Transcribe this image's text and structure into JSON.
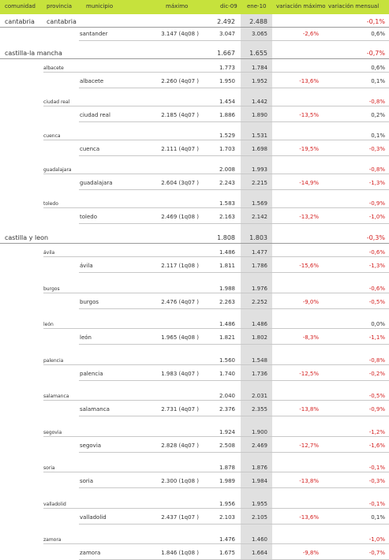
{
  "headers": {
    "comunidad": "comunidad",
    "provincia": "provincia",
    "municipio": "municipio",
    "maximo": "máximo",
    "dic09": "dic-09",
    "ene10": "ene-10",
    "var_max": "variación máximo",
    "var_mensual": "variación mensual"
  },
  "regions": [
    {
      "name": "cantabria",
      "provincia_label": "cantabria",
      "dic09": "2.492",
      "ene10": "2.488",
      "var_mensual": "-0,1%",
      "provinces": [],
      "municipios": [
        {
          "name": "santander",
          "maximo": "3.147 (4q08 )",
          "dic09": "3.047",
          "ene10": "3.065",
          "var_max": "-2,6%",
          "var_mensual": "0,6%"
        }
      ]
    },
    {
      "name": "castilla-la mancha",
      "dic09": "1.667",
      "ene10": "1.655",
      "var_mensual": "-0,7%",
      "provinces": [
        {
          "name": "albacete",
          "dic09": "1.773",
          "ene10": "1.784",
          "var_mensual": "0,6%",
          "municipio": {
            "name": "albacete",
            "maximo": "2.260 (4q07 )",
            "dic09": "1.950",
            "ene10": "1.952",
            "var_max": "-13,6%",
            "var_mensual": "0,1%"
          }
        },
        {
          "name": "ciudad real",
          "dic09": "1.454",
          "ene10": "1.442",
          "var_mensual": "-0,8%",
          "municipio": {
            "name": "ciudad real",
            "maximo": "2.185 (4q07 )",
            "dic09": "1.886",
            "ene10": "1.890",
            "var_max": "-13,5%",
            "var_mensual": "0,2%"
          }
        },
        {
          "name": "cuenca",
          "dic09": "1.529",
          "ene10": "1.531",
          "var_mensual": "0,1%",
          "municipio": {
            "name": "cuenca",
            "maximo": "2.111 (4q07 )",
            "dic09": "1.703",
            "ene10": "1.698",
            "var_max": "-19,5%",
            "var_mensual": "-0,3%"
          }
        },
        {
          "name": "guadalajara",
          "dic09": "2.008",
          "ene10": "1.993",
          "var_mensual": "-0,8%",
          "municipio": {
            "name": "guadalajara",
            "maximo": "2.604 (3q07 )",
            "dic09": "2.243",
            "ene10": "2.215",
            "var_max": "-14,9%",
            "var_mensual": "-1,3%"
          }
        },
        {
          "name": "toledo",
          "dic09": "1.583",
          "ene10": "1.569",
          "var_mensual": "-0,9%",
          "municipio": {
            "name": "toledo",
            "maximo": "2.469 (1q08 )",
            "dic09": "2.163",
            "ene10": "2.142",
            "var_max": "-13,2%",
            "var_mensual": "-1,0%"
          }
        }
      ]
    },
    {
      "name": "castilla y leon",
      "dic09": "1.808",
      "ene10": "1.803",
      "var_mensual": "-0,3%",
      "provinces": [
        {
          "name": "ávila",
          "dic09": "1.486",
          "ene10": "1.477",
          "var_mensual": "-0,6%",
          "municipio": {
            "name": "ávila",
            "maximo": "2.117 (1q08 )",
            "dic09": "1.811",
            "ene10": "1.786",
            "var_max": "-15,6%",
            "var_mensual": "-1,3%"
          }
        },
        {
          "name": "burgos",
          "dic09": "1.988",
          "ene10": "1.976",
          "var_mensual": "-0,6%",
          "municipio": {
            "name": "burgos",
            "maximo": "2.476 (4q07 )",
            "dic09": "2.263",
            "ene10": "2.252",
            "var_max": "-9,0%",
            "var_mensual": "-0,5%"
          }
        },
        {
          "name": "león",
          "dic09": "1.486",
          "ene10": "1.486",
          "var_mensual": "0,0%",
          "municipio": {
            "name": "león",
            "maximo": "1.965 (4q08 )",
            "dic09": "1.821",
            "ene10": "1.802",
            "var_max": "-8,3%",
            "var_mensual": "-1,1%"
          }
        },
        {
          "name": "palencia",
          "dic09": "1.560",
          "ene10": "1.548",
          "var_mensual": "-0,8%",
          "municipio": {
            "name": "palencia",
            "maximo": "1.983 (4q07 )",
            "dic09": "1.740",
            "ene10": "1.736",
            "var_max": "-12,5%",
            "var_mensual": "-0,2%"
          }
        },
        {
          "name": "salamanca",
          "dic09": "2.040",
          "ene10": "2.031",
          "var_mensual": "-0,5%",
          "municipio": {
            "name": "salamanca",
            "maximo": "2.731 (4q07 )",
            "dic09": "2.376",
            "ene10": "2.355",
            "var_max": "-13,8%",
            "var_mensual": "-0,9%"
          }
        },
        {
          "name": "segovia",
          "dic09": "1.924",
          "ene10": "1.900",
          "var_mensual": "-1,2%",
          "municipio": {
            "name": "segovia",
            "maximo": "2.828 (4q07 )",
            "dic09": "2.508",
            "ene10": "2.469",
            "var_max": "-12,7%",
            "var_mensual": "-1,6%"
          }
        },
        {
          "name": "soria",
          "dic09": "1.878",
          "ene10": "1.876",
          "var_mensual": "-0,1%",
          "municipio": {
            "name": "soria",
            "maximo": "2.300 (1q08 )",
            "dic09": "1.989",
            "ene10": "1.984",
            "var_max": "-13,8%",
            "var_mensual": "-0,3%"
          }
        },
        {
          "name": "valladolid",
          "dic09": "1.956",
          "ene10": "1.955",
          "var_mensual": "-0,1%",
          "municipio": {
            "name": "valladolid",
            "maximo": "2.437 (1q07 )",
            "dic09": "2.103",
            "ene10": "2.105",
            "var_max": "-13,6%",
            "var_mensual": "0,1%"
          }
        },
        {
          "name": "zamora",
          "dic09": "1.476",
          "ene10": "1.460",
          "var_mensual": "-1,0%",
          "municipio": {
            "name": "zamora",
            "maximo": "1.846 (1q08 )",
            "dic09": "1.675",
            "ene10": "1.664",
            "var_max": "-9,8%",
            "var_mensual": "-0,7%"
          }
        }
      ]
    }
  ]
}
